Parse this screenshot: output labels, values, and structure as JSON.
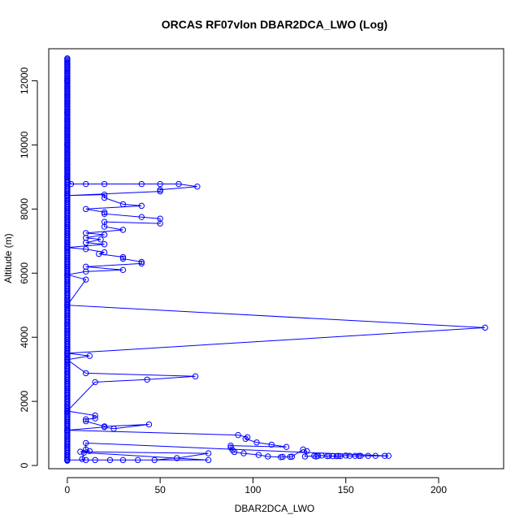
{
  "chart_data": {
    "type": "line",
    "title": "ORCAS RF07vlon DBAR2DCA_LWO (Log)",
    "xlabel": "DBAR2DCA_LWO",
    "ylabel": "Altitude (m)",
    "xlim": [
      -10,
      235
    ],
    "ylim": [
      -100,
      13000
    ],
    "xticks": [
      0,
      50,
      100,
      150,
      200
    ],
    "yticks": [
      0,
      2000,
      4000,
      6000,
      8000,
      10000,
      12000
    ],
    "series_color": "#0000ff",
    "marker": "open-circle",
    "grid": false,
    "series": [
      {
        "values": [
          [
            0,
            12700
          ],
          [
            0,
            12000
          ],
          [
            0,
            11000
          ],
          [
            0,
            10000
          ],
          [
            0,
            9000
          ],
          [
            2,
            8780
          ],
          [
            10,
            8780
          ],
          [
            20,
            8780
          ],
          [
            40,
            8780
          ],
          [
            50,
            8780
          ],
          [
            60,
            8780
          ],
          [
            70,
            8700
          ],
          [
            50,
            8600
          ],
          [
            50,
            8550
          ],
          [
            0,
            8420
          ],
          [
            20,
            8450
          ],
          [
            20,
            8350
          ],
          [
            30,
            8150
          ],
          [
            40,
            8100
          ],
          [
            10,
            8000
          ],
          [
            20,
            7900
          ],
          [
            20,
            7850
          ],
          [
            40,
            7750
          ],
          [
            50,
            7700
          ],
          [
            50,
            7550
          ],
          [
            20,
            7600
          ],
          [
            20,
            7450
          ],
          [
            30,
            7350
          ],
          [
            10,
            7250
          ],
          [
            20,
            7200
          ],
          [
            10,
            7100
          ],
          [
            18,
            7050
          ],
          [
            10,
            6950
          ],
          [
            20,
            6900
          ],
          [
            0,
            6800
          ],
          [
            10,
            6750
          ],
          [
            20,
            6650
          ],
          [
            17,
            6600
          ],
          [
            30,
            6500
          ],
          [
            30,
            6450
          ],
          [
            40,
            6350
          ],
          [
            40,
            6300
          ],
          [
            10,
            6200
          ],
          [
            30,
            6100
          ],
          [
            10,
            6050
          ],
          [
            0,
            5950
          ],
          [
            10,
            5800
          ],
          [
            0,
            5000
          ],
          [
            225,
            4300
          ],
          [
            0,
            3500
          ],
          [
            12,
            3420
          ],
          [
            0,
            3300
          ],
          [
            10,
            2880
          ],
          [
            69,
            2780
          ],
          [
            43,
            2680
          ],
          [
            15,
            2600
          ],
          [
            0,
            1700
          ],
          [
            15,
            1560
          ],
          [
            15,
            1470
          ],
          [
            10,
            1440
          ],
          [
            10,
            1380
          ],
          [
            20,
            1220
          ],
          [
            44,
            1280
          ],
          [
            25,
            1150
          ],
          [
            20,
            1200
          ],
          [
            0,
            1100
          ],
          [
            92,
            950
          ],
          [
            97,
            880
          ],
          [
            96,
            830
          ],
          [
            102,
            720
          ],
          [
            110,
            650
          ],
          [
            118,
            580
          ],
          [
            88,
            620
          ],
          [
            88,
            560
          ],
          [
            89,
            480
          ],
          [
            90,
            420
          ],
          [
            95,
            380
          ],
          [
            103,
            330
          ],
          [
            108,
            280
          ],
          [
            115,
            260
          ],
          [
            116,
            270
          ],
          [
            120,
            270
          ],
          [
            121,
            275
          ],
          [
            127,
            500
          ],
          [
            129,
            450
          ],
          [
            128,
            280
          ],
          [
            133,
            300
          ],
          [
            134,
            280
          ],
          [
            135,
            300
          ],
          [
            137,
            310
          ],
          [
            140,
            290
          ],
          [
            141,
            300
          ],
          [
            143,
            290
          ],
          [
            145,
            290
          ],
          [
            146,
            300
          ],
          [
            147,
            290
          ],
          [
            150,
            310
          ],
          [
            152,
            300
          ],
          [
            155,
            300
          ],
          [
            157,
            300
          ],
          [
            158,
            300
          ],
          [
            162,
            300
          ],
          [
            166,
            300
          ],
          [
            171,
            300
          ],
          [
            173,
            300
          ],
          [
            10,
            700
          ],
          [
            10,
            500
          ],
          [
            12,
            450
          ],
          [
            7,
            430
          ],
          [
            76,
            380
          ],
          [
            59,
            230
          ],
          [
            47,
            170
          ],
          [
            38,
            170
          ],
          [
            30,
            170
          ],
          [
            23,
            170
          ],
          [
            15,
            170
          ],
          [
            10,
            170
          ],
          [
            8,
            200
          ],
          [
            9,
            400
          ],
          [
            76,
            170
          ],
          [
            0,
            170
          ]
        ]
      }
    ]
  }
}
